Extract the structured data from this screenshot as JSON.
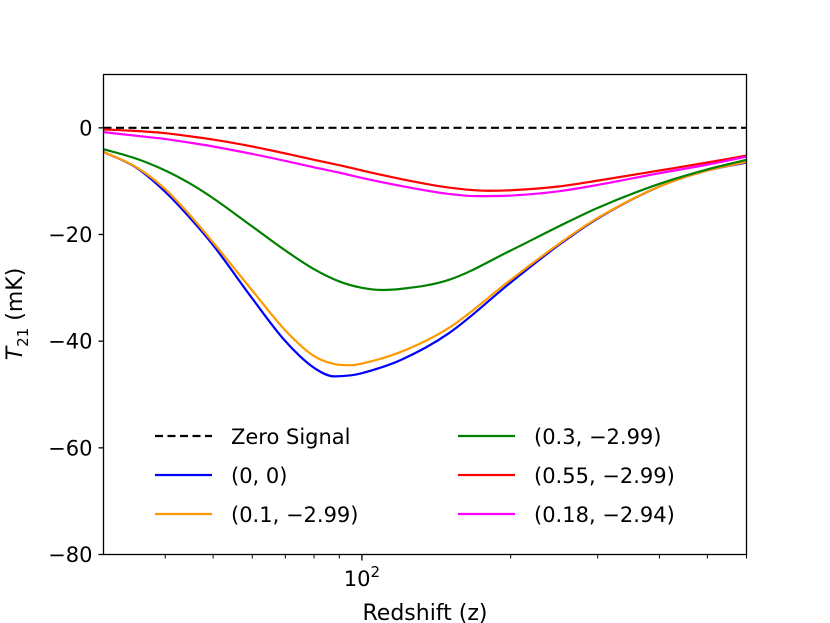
{
  "chart_data": {
    "type": "line",
    "title": "",
    "xlabel": "Redshift (z)",
    "ylabel_main": "T",
    "ylabel_sub": "21",
    "ylabel_unit": " (mK)",
    "xscale": "log",
    "xlim": [
      30,
      600
    ],
    "ylim": [
      -80,
      10
    ],
    "grid": false,
    "legend_location": "lower-center",
    "yticks": [
      {
        "value": 0,
        "label": "0"
      },
      {
        "value": -20,
        "label": "−20"
      },
      {
        "value": -40,
        "label": "−40"
      },
      {
        "value": -60,
        "label": "−60"
      },
      {
        "value": -80,
        "label": "−80"
      }
    ],
    "xticks_major": [
      {
        "value": 100,
        "base": "10",
        "exp": "2"
      }
    ],
    "xticks_minor": [
      40,
      50,
      60,
      70,
      80,
      90,
      200,
      300,
      400,
      500,
      600
    ],
    "series": [
      {
        "name": "Zero Signal",
        "color": "#000000",
        "dash": "dashed",
        "x": [
          30,
          600
        ],
        "y": [
          0,
          0
        ]
      },
      {
        "name": "(0, 0)",
        "color": "#0000ff",
        "dash": "solid",
        "x": [
          30,
          35,
          40,
          45,
          50,
          60,
          70,
          80,
          88,
          95,
          100,
          120,
          150,
          200,
          250,
          300,
          400,
          500,
          600
        ],
        "y": [
          -4.5,
          -7.5,
          -12,
          -17,
          -22,
          -32,
          -40,
          -45,
          -46.6,
          -46.4,
          -46,
          -43.5,
          -38.5,
          -29,
          -22,
          -17,
          -11,
          -8,
          -6.5
        ]
      },
      {
        "name": "(0.1, −2.99)",
        "color": "#ff9900",
        "dash": "solid",
        "x": [
          30,
          35,
          40,
          45,
          50,
          60,
          70,
          80,
          88,
          95,
          100,
          120,
          150,
          200,
          250,
          300,
          400,
          500,
          600
        ],
        "y": [
          -4.5,
          -7.4,
          -11.5,
          -16.5,
          -21.5,
          -30.5,
          -38,
          -42.8,
          -44.3,
          -44.5,
          -44.2,
          -42,
          -37.5,
          -28.5,
          -21.8,
          -16.9,
          -11,
          -8,
          -6.4
        ]
      },
      {
        "name": "(0.3, −2.99)",
        "color": "#008000",
        "dash": "solid",
        "x": [
          30,
          35,
          40,
          45,
          50,
          60,
          70,
          80,
          90,
          100,
          110,
          120,
          150,
          200,
          250,
          300,
          400,
          500,
          600
        ],
        "y": [
          -4,
          -5.8,
          -8,
          -10.5,
          -13.2,
          -18.5,
          -23,
          -26.5,
          -28.8,
          -30,
          -30.4,
          -30.2,
          -28.5,
          -23,
          -18.5,
          -15,
          -10.5,
          -7.8,
          -6
        ]
      },
      {
        "name": "(0.55, −2.99)",
        "color": "#ff0000",
        "dash": "solid",
        "x": [
          30,
          35,
          40,
          45,
          50,
          60,
          70,
          80,
          90,
          100,
          120,
          150,
          180,
          200,
          250,
          300,
          400,
          500,
          600
        ],
        "y": [
          -0.3,
          -0.6,
          -1,
          -1.6,
          -2.2,
          -3.5,
          -4.8,
          -6,
          -7,
          -8,
          -9.6,
          -11.2,
          -11.8,
          -11.7,
          -11,
          -9.9,
          -8,
          -6.5,
          -5.2
        ]
      },
      {
        "name": "(0.18, −2.94)",
        "color": "#ff00ff",
        "dash": "solid",
        "x": [
          30,
          35,
          40,
          45,
          50,
          60,
          70,
          80,
          90,
          100,
          120,
          150,
          170,
          200,
          250,
          300,
          400,
          500,
          600
        ],
        "y": [
          -0.8,
          -1.5,
          -2.1,
          -2.8,
          -3.5,
          -4.9,
          -6.2,
          -7.4,
          -8.4,
          -9.4,
          -10.9,
          -12.4,
          -12.8,
          -12.7,
          -11.9,
          -10.7,
          -8.5,
          -6.9,
          -5.4
        ]
      }
    ]
  }
}
